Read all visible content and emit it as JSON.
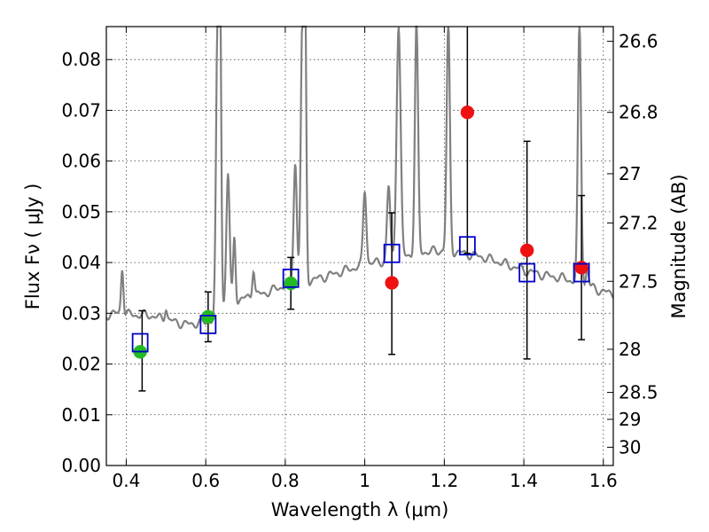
{
  "chart_data": {
    "type": "scatter",
    "xlabel": "Wavelength  λ (μm)",
    "ylabel": "Flux  Fν  ( μJy )",
    "ylabel_right": "Magnitude (AB)",
    "xlim": [
      0.35,
      1.625
    ],
    "ylim": [
      0.0,
      0.0865
    ],
    "grid": true,
    "x_ticks": [
      0.4,
      0.6,
      0.8,
      1.0,
      1.2,
      1.4,
      1.6
    ],
    "x_tick_labels": [
      "0.4",
      "0.6",
      "0.8",
      "1",
      "1.2",
      "1.4",
      "1.6"
    ],
    "y_ticks": [
      0.0,
      0.01,
      0.02,
      0.03,
      0.04,
      0.05,
      0.06,
      0.07,
      0.08
    ],
    "y_tick_labels": [
      "0.00",
      "0.01",
      "0.02",
      "0.03",
      "0.04",
      "0.05",
      "0.06",
      "0.07",
      "0.08"
    ],
    "right_ticks": [
      {
        "label": "26.6",
        "flux": 0.0836
      },
      {
        "label": "26.8",
        "flux": 0.0696
      },
      {
        "label": "27",
        "flux": 0.0575
      },
      {
        "label": "27.2",
        "flux": 0.0478
      },
      {
        "label": "27.5",
        "flux": 0.0363
      },
      {
        "label": "28",
        "flux": 0.0229
      },
      {
        "label": "28.5",
        "flux": 0.0144
      },
      {
        "label": "29",
        "flux": 0.0091
      },
      {
        "label": "30",
        "flux": 0.0036
      }
    ],
    "series": [
      {
        "marker": "circle",
        "color": "#22bb22",
        "points": [
          {
            "x": 0.435,
            "y": 0.0224
          },
          {
            "x": 0.606,
            "y": 0.0293
          },
          {
            "x": 0.814,
            "y": 0.0359
          }
        ]
      },
      {
        "marker": "circle",
        "color": "#ee1111",
        "points": [
          {
            "x": 1.068,
            "y": 0.036
          },
          {
            "x": 1.258,
            "y": 0.0696
          },
          {
            "x": 1.408,
            "y": 0.0424
          },
          {
            "x": 1.545,
            "y": 0.039
          }
        ]
      },
      {
        "marker": "open-square",
        "color": "#0000cc",
        "points": [
          {
            "x": 0.435,
            "y": 0.0242
          },
          {
            "x": 0.606,
            "y": 0.0278
          },
          {
            "x": 0.814,
            "y": 0.0369
          },
          {
            "x": 1.068,
            "y": 0.0418
          },
          {
            "x": 1.258,
            "y": 0.0433
          },
          {
            "x": 1.408,
            "y": 0.038
          },
          {
            "x": 1.545,
            "y": 0.038
          }
        ]
      }
    ],
    "error_bars": [
      {
        "x": 0.44,
        "low": 0.0147,
        "high": 0.0305
      },
      {
        "x": 0.606,
        "low": 0.0244,
        "high": 0.0342
      },
      {
        "x": 0.814,
        "low": 0.0308,
        "high": 0.041
      },
      {
        "x": 1.068,
        "low": 0.0219,
        "high": 0.0498
      },
      {
        "x": 1.258,
        "low": 0.0418,
        "high": 0.0865
      },
      {
        "x": 1.408,
        "low": 0.021,
        "high": 0.0639
      },
      {
        "x": 1.545,
        "low": 0.0248,
        "high": 0.0532
      }
    ],
    "model_spectrum": {
      "color": "#808080",
      "continuum": [
        [
          0.35,
          0.0297
        ],
        [
          0.38,
          0.03
        ],
        [
          0.42,
          0.0297
        ],
        [
          0.46,
          0.0296
        ],
        [
          0.5,
          0.0287
        ],
        [
          0.55,
          0.0278
        ],
        [
          0.6,
          0.0282
        ],
        [
          0.625,
          0.029
        ],
        [
          0.65,
          0.0318
        ],
        [
          0.7,
          0.033
        ],
        [
          0.75,
          0.034
        ],
        [
          0.8,
          0.0355
        ],
        [
          0.85,
          0.0362
        ],
        [
          0.9,
          0.0372
        ],
        [
          0.95,
          0.0384
        ],
        [
          1.0,
          0.0396
        ],
        [
          1.05,
          0.0403
        ],
        [
          1.1,
          0.0412
        ],
        [
          1.15,
          0.0421
        ],
        [
          1.2,
          0.0424
        ],
        [
          1.25,
          0.0418
        ],
        [
          1.3,
          0.041
        ],
        [
          1.35,
          0.0398
        ],
        [
          1.4,
          0.0385
        ],
        [
          1.45,
          0.0375
        ],
        [
          1.5,
          0.0369
        ],
        [
          1.55,
          0.0358
        ],
        [
          1.6,
          0.0342
        ],
        [
          1.625,
          0.0339
        ]
      ],
      "lines": [
        {
          "x": 0.39,
          "peak": 0.0391,
          "w": 0.003
        },
        {
          "x": 0.5,
          "peak": 0.0312,
          "w": 0.003
        },
        {
          "x": 0.63,
          "peak": 0.087,
          "w": 0.004
        },
        {
          "x": 0.636,
          "peak": 0.087,
          "w": 0.003
        },
        {
          "x": 0.656,
          "peak": 0.0577,
          "w": 0.004
        },
        {
          "x": 0.672,
          "peak": 0.045,
          "w": 0.003
        },
        {
          "x": 0.72,
          "peak": 0.039,
          "w": 0.003
        },
        {
          "x": 0.825,
          "peak": 0.06,
          "w": 0.004
        },
        {
          "x": 0.843,
          "peak": 0.087,
          "w": 0.004
        },
        {
          "x": 0.85,
          "peak": 0.087,
          "w": 0.003
        },
        {
          "x": 1.0,
          "peak": 0.0545,
          "w": 0.004
        },
        {
          "x": 1.06,
          "peak": 0.055,
          "w": 0.004
        },
        {
          "x": 1.085,
          "peak": 0.087,
          "w": 0.005
        },
        {
          "x": 1.13,
          "peak": 0.087,
          "w": 0.004
        },
        {
          "x": 1.21,
          "peak": 0.087,
          "w": 0.004
        },
        {
          "x": 1.54,
          "peak": 0.087,
          "w": 0.004
        },
        {
          "x": 1.56,
          "peak": 0.039,
          "w": 0.003
        }
      ]
    }
  }
}
